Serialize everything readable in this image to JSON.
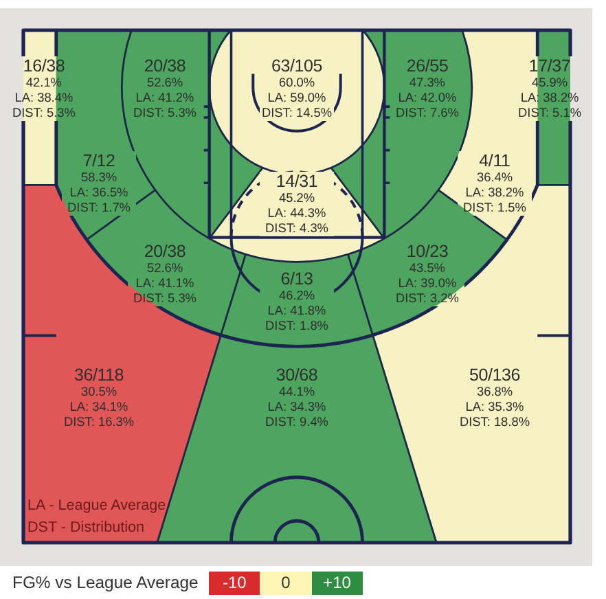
{
  "chart_data": {
    "type": "other",
    "categories": [
      "16/38",
      "20/38",
      "63/105",
      "26/55",
      "17/37",
      "7/12",
      "14/31",
      "4/11",
      "20/38",
      "6/13",
      "10/23",
      "36/118",
      "30/68",
      "50/136"
    ],
    "series": [
      {
        "values": [
          42.1,
          52.6,
          60.0,
          47.3,
          45.9,
          58.3,
          45.2,
          36.4,
          52.6,
          46.2,
          43.5,
          30.5,
          44.1,
          36.8
        ],
        "colors": [
          "#f7f2c3",
          "#4fa560",
          "#f7f2c3",
          "#4fa560",
          "#4fa560",
          "#4fa560",
          "#f7f2c3",
          "#f7f2c3",
          "#4fa560",
          "#4fa560",
          "#4fa560",
          "#e15656",
          "#4fa560",
          "#f7f2c3"
        ],
        "value_labels": [
          "42.1%",
          "52.6%",
          "60.0%",
          "47.3%",
          "45.9%",
          "58.3%",
          "45.2%",
          "36.4%",
          "52.6%",
          "46.2%",
          "43.5%",
          "30.5%",
          "44.1%",
          "36.8%"
        ]
      },
      {
        "values": [
          38.4,
          41.2,
          59.0,
          42.0,
          38.2,
          36.5,
          44.3,
          38.2,
          41.1,
          41.8,
          39.0,
          34.1,
          34.3,
          35.3
        ],
        "colors": [
          "#f7f2c3",
          "#4fa560",
          "#f7f2c3",
          "#4fa560",
          "#4fa560",
          "#4fa560",
          "#f7f2c3",
          "#f7f2c3",
          "#4fa560",
          "#4fa560",
          "#4fa560",
          "#e15656",
          "#4fa560",
          "#f7f2c3"
        ],
        "value_labels": [
          "LA: 38.4%",
          "LA: 41.2%",
          "LA: 59.0%",
          "LA: 42.0%",
          "LA: 38.2%",
          "LA: 36.5%",
          "LA: 44.3%",
          "LA: 38.2%",
          "LA: 41.1%",
          "LA: 41.8%",
          "LA: 39.0%",
          "LA: 34.1%",
          "LA: 34.3%",
          "LA: 35.3%"
        ]
      },
      {
        "values": [
          5.3,
          5.3,
          14.5,
          7.6,
          5.1,
          1.7,
          4.3,
          1.5,
          5.3,
          1.8,
          3.2,
          16.3,
          9.4,
          18.8
        ],
        "colors": [
          "#f7f2c3",
          "#4fa560",
          "#f7f2c3",
          "#4fa560",
          "#4fa560",
          "#4fa560",
          "#f7f2c3",
          "#f7f2c3",
          "#4fa560",
          "#4fa560",
          "#4fa560",
          "#e15656",
          "#4fa560",
          "#f7f2c3"
        ],
        "value_labels": [
          "DIST: 5.3%",
          "DIST: 5.3%",
          "DIST: 14.5%",
          "DIST: 7.6%",
          "DIST: 5.1%",
          "DIST: 1.7%",
          "DIST: 4.3%",
          "DIST: 1.5%",
          "DIST: 5.3%",
          "DIST: 1.8%",
          "DIST: 3.2%",
          "DIST: 16.3%",
          "DIST: 9.4%",
          "DIST: 18.8%"
        ]
      }
    ],
    "annotations": [
      "LA - League Average",
      "DST - Distribution",
      "FG% vs League Average",
      "-10",
      "0",
      "+10"
    ]
  }
}
